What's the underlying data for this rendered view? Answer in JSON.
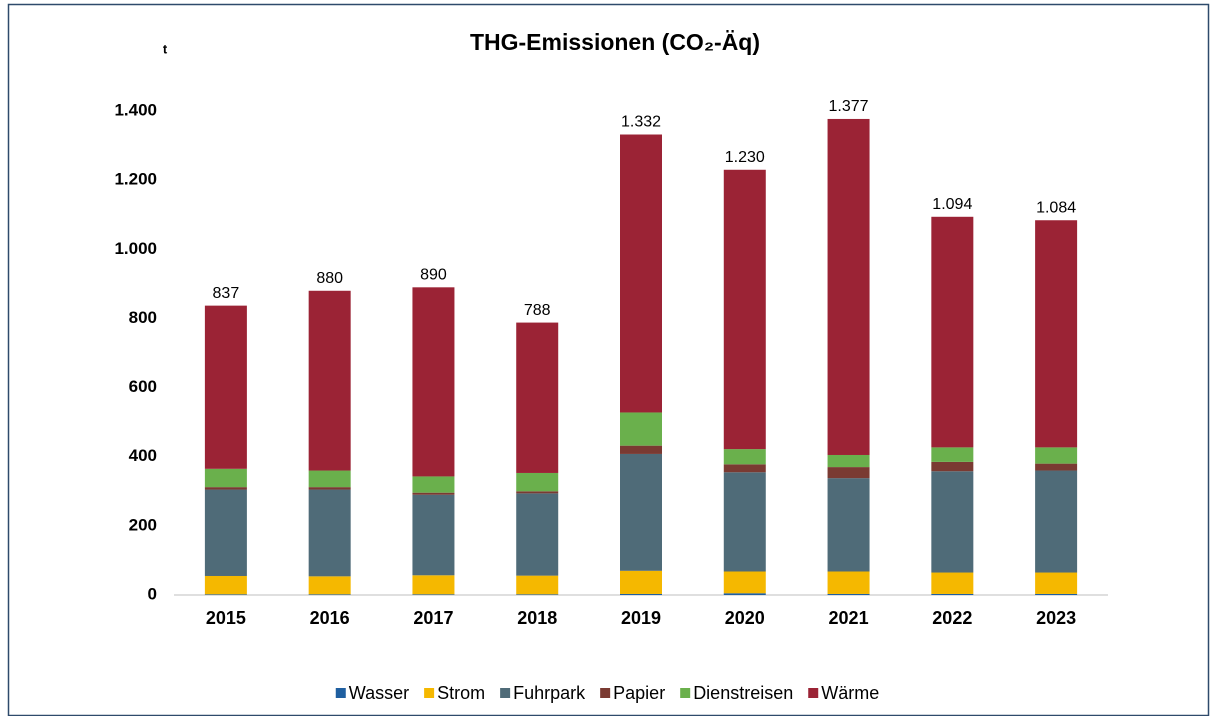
{
  "chart_data": {
    "type": "stacked_bar",
    "title": "THG-Emissionen (CO₂-Äq)",
    "y_label": "t",
    "categories": [
      "2015",
      "2016",
      "2017",
      "2018",
      "2019",
      "2020",
      "2021",
      "2022",
      "2023"
    ],
    "series": [
      {
        "name": "Wasser",
        "color": "#1f5fa0",
        "values": [
          2,
          2,
          2,
          2,
          3,
          5,
          3,
          3,
          3
        ]
      },
      {
        "name": "Strom",
        "color": "#f5b800",
        "values": [
          53,
          52,
          55,
          54,
          67,
          63,
          65,
          62,
          62
        ]
      },
      {
        "name": "Fuhrpark",
        "color": "#4f6b78",
        "values": [
          250,
          251,
          233,
          238,
          338,
          287,
          270,
          293,
          295
        ]
      },
      {
        "name": "Papier",
        "color": "#7a3a32",
        "values": [
          7,
          7,
          6,
          6,
          24,
          23,
          32,
          27,
          20
        ]
      },
      {
        "name": "Dienstreisen",
        "color": "#6ab04c",
        "values": [
          53,
          48,
          47,
          53,
          96,
          44,
          35,
          42,
          47
        ]
      },
      {
        "name": "Wärme",
        "color": "#9b2335",
        "values": [
          472,
          520,
          547,
          435,
          804,
          808,
          972,
          667,
          657
        ]
      }
    ],
    "totals": {
      "values": [
        837,
        880,
        890,
        788,
        1332,
        1230,
        1377,
        1094,
        1084
      ],
      "value_labels": [
        "837",
        "880",
        "890",
        "788",
        "1.332",
        "1.230",
        "1.377",
        "1.094",
        "1.084"
      ]
    },
    "ylim": [
      0,
      1400
    ],
    "yticks": [
      0,
      200,
      400,
      600,
      800,
      {
        "value": 1000,
        "label": "1.000"
      },
      {
        "value": 1200,
        "label": "1.200"
      },
      {
        "value": 1400,
        "label": "1.400"
      }
    ],
    "legend": "bottom"
  }
}
